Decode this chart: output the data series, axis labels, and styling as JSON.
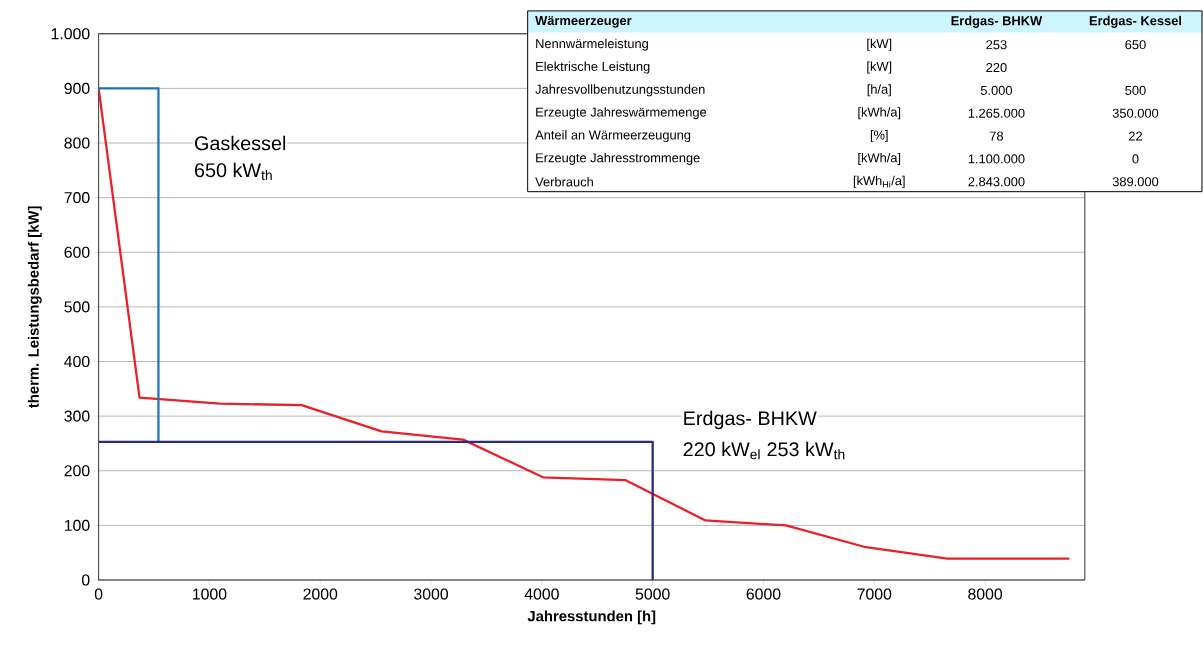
{
  "chart_data": [
    {
      "type": "line",
      "xlabel": "Jahresstunden [h]",
      "ylabel": "therm. Leistungsbedarf [kW]",
      "xlim": [
        0,
        8900
      ],
      "ylim": [
        0,
        1000
      ],
      "xticks": [
        0,
        1000,
        2000,
        3000,
        4000,
        5000,
        6000,
        7000,
        8000
      ],
      "yticks": [
        0,
        100,
        200,
        300,
        400,
        500,
        600,
        700,
        800,
        900,
        {
          "value": 1000,
          "label": "1.000"
        }
      ],
      "grid": "y",
      "annotations": [
        "Gaskessel",
        "650 kW$_{th}$",
        "Erdgas- BHKW",
        "220 kW$_{el}$   253 kW$_{th}$"
      ],
      "series": [
        {
          "color": "#e8202a",
          "x": [
            0,
            369,
            1096,
            1832,
            2553,
            3289,
            4010,
            4752,
            5476,
            6203,
            6924,
            7660,
            8760
          ],
          "values": [
            900,
            334,
            323,
            320,
            272,
            257,
            188,
            183,
            109,
            100,
            60,
            39,
            39
          ]
        },
        {
          "color": "#1a75bc",
          "x": [
            0,
            540,
            540
          ],
          "values": [
            900,
            900,
            253
          ]
        },
        {
          "color": "#2b2a7e",
          "x": [
            0,
            5000,
            5000
          ],
          "values": [
            253,
            253,
            0
          ]
        }
      ]
    },
    {
      "type": "other",
      "title": "Wärmeerzeuger",
      "annotations": [
        "Erdgas- BHKW",
        "Erdgas- Kessel",
        "Nennwärmeleistung",
        "[kW]",
        "253",
        "650",
        "Elektrische Leistung",
        "[kW]",
        "220",
        null,
        "Jahresvollbenutzungsstunden",
        "[h/a]",
        "5.000",
        "500",
        "Erzeugte Jahreswärmemenge",
        "[kWh/a]",
        "1.265.000",
        "350.000",
        "Anteil an Wärmeerzeugung",
        "[%]",
        "78",
        "22",
        "Erzeugte Jahresstrommenge",
        "[kWh/a]",
        "1.100.000",
        "0",
        "Verbrauch",
        "[kWh$_{Hi}$/a]",
        "2.843.000",
        "389.000"
      ]
    }
  ]
}
